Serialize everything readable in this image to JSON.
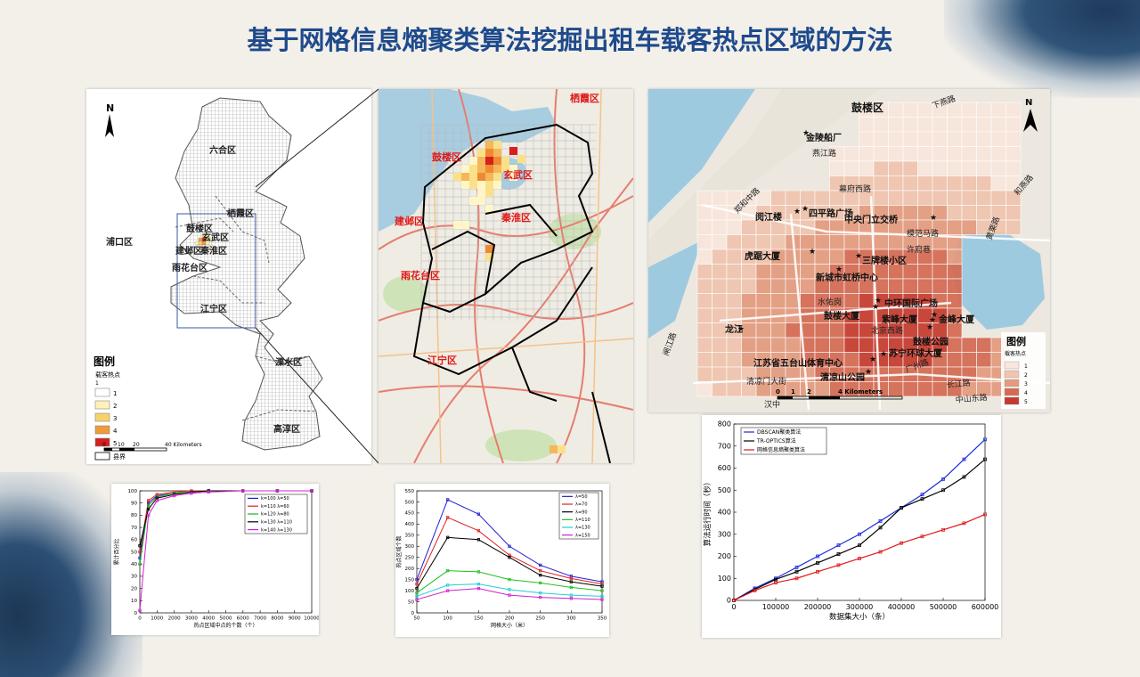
{
  "slide": {
    "title": "基于网格信息熵聚类算法挖掘出租车载客热点区域的方法"
  },
  "map_overview": {
    "north": "N",
    "districts": [
      "六合区",
      "栖霞区",
      "浦口区",
      "鼓楼区",
      "玄武区",
      "建邺区",
      "秦淮区",
      "雨花台区",
      "江宁区",
      "溧水区",
      "高淳区"
    ],
    "legend_title": "图例",
    "legend_subtitle": "载客热点",
    "legend_items": [
      "1",
      "2",
      "3",
      "4",
      "5"
    ],
    "legend_boundary": "县界",
    "scale_ticks": [
      "0",
      "10",
      "20",
      "40 Kilometers"
    ],
    "colors": [
      "#ffffff",
      "#fff3b8",
      "#f6d36a",
      "#f19a3b",
      "#d62020"
    ]
  },
  "map_zoom": {
    "labels": [
      "栖霞区",
      "鼓楼区",
      "玄武区",
      "建邺区",
      "秦淮区",
      "雨花台区",
      "江宁区"
    ]
  },
  "map_detail": {
    "north": "N",
    "districts": [
      "鼓楼区"
    ],
    "places": [
      "金陵船厂",
      "四平路广场",
      "阅江楼",
      "中央门立交桥",
      "虎踞大厦",
      "三牌楼小区",
      "新城市虹桥中心",
      "中环国际广场",
      "鼓楼大厦",
      "紫峰大厦",
      "金峰大厦",
      "龙江",
      "鼓楼公园",
      "江苏省五台山体育中心",
      "苏宁环球大厦",
      "清凉山公园"
    ],
    "roads": [
      "燕江路",
      "幕府西路",
      "郑和中路",
      "许府巷",
      "模范马路",
      "水佑岗",
      "北京西路",
      "闸江路",
      "清凉门大街",
      "广州路",
      "汉中",
      "长江路",
      "中山东路",
      "黄栗路",
      "下燕路",
      "和燕路"
    ],
    "legend_title": "图例",
    "legend_subtitle": "载客热点",
    "legend_items": [
      "1",
      "2",
      "3",
      "4",
      "5"
    ],
    "scale_ticks": [
      "0",
      "1",
      "2",
      "4 Kilometers"
    ],
    "colors": [
      "#f9e6dc",
      "#f0c4ae",
      "#e39a7e",
      "#d46a52",
      "#c43a2e"
    ]
  },
  "chart_runtime": {
    "ylabel": "算法运行时间（秒）",
    "xlabel": "数据集大小（条）"
  },
  "chart_cluster": {
    "xlabel": "热点区域中点的个数（个）",
    "ylabel": "累计百分比"
  },
  "chart_grid": {
    "xlabel": "网格大小（米）",
    "ylabel": "热点区域个数"
  },
  "chart_data": [
    {
      "type": "line",
      "title": "",
      "xlabel": "热点区域中点的个数（个）",
      "ylabel": "累计百分比",
      "xlim": [
        0,
        10000
      ],
      "ylim": [
        0,
        100
      ],
      "x_ticks": [
        "0",
        "1000",
        "2000",
        "3000",
        "4000",
        "5000",
        "6000",
        "7000",
        "8000",
        "9000",
        "10000"
      ],
      "y_ticks": [
        "0",
        "10",
        "20",
        "30",
        "40",
        "50",
        "60",
        "70",
        "80",
        "90",
        "100"
      ],
      "x": [
        0,
        500,
        1000,
        2000,
        3000,
        4000,
        6000,
        8000,
        10000
      ],
      "series": [
        {
          "name": "k=100  λ=50",
          "color": "#2020d0",
          "values": [
            45,
            90,
            96,
            98,
            99,
            100,
            100,
            100,
            100
          ]
        },
        {
          "name": "k=110  λ=60",
          "color": "#e02020",
          "values": [
            50,
            92,
            97,
            99,
            100,
            100,
            100,
            100,
            100
          ]
        },
        {
          "name": "k=120  λ=80",
          "color": "#20b020",
          "values": [
            40,
            88,
            95,
            98,
            99,
            100,
            100,
            100,
            100
          ]
        },
        {
          "name": "k=130  λ=110",
          "color": "#000000",
          "values": [
            55,
            85,
            94,
            97,
            99,
            100,
            100,
            100,
            100
          ]
        },
        {
          "name": "k=140  λ=130",
          "color": "#d020d0",
          "values": [
            2,
            80,
            92,
            96,
            98,
            99,
            100,
            100,
            100
          ]
        }
      ]
    },
    {
      "type": "line",
      "title": "",
      "xlabel": "网格大小（米）",
      "ylabel": "热点区域个数",
      "xlim": [
        50,
        350
      ],
      "ylim": [
        0,
        550
      ],
      "x_ticks": [
        "50",
        "100",
        "150",
        "200",
        "250",
        "300",
        "350"
      ],
      "y_ticks": [
        "0",
        "50",
        "100",
        "150",
        "200",
        "250",
        "300",
        "350",
        "400",
        "450",
        "500",
        "550"
      ],
      "x": [
        50,
        100,
        150,
        200,
        250,
        300,
        350
      ],
      "series": [
        {
          "name": "λ=50",
          "color": "#2020d0",
          "values": [
            150,
            510,
            445,
            300,
            215,
            165,
            140
          ]
        },
        {
          "name": "λ=70",
          "color": "#e02020",
          "values": [
            130,
            430,
            370,
            260,
            190,
            155,
            130
          ]
        },
        {
          "name": "λ=90",
          "color": "#000000",
          "values": [
            110,
            340,
            330,
            250,
            170,
            140,
            120
          ]
        },
        {
          "name": "λ=110",
          "color": "#20c020",
          "values": [
            90,
            190,
            185,
            150,
            135,
            115,
            100
          ]
        },
        {
          "name": "λ=130",
          "color": "#20d0d0",
          "values": [
            75,
            125,
            130,
            105,
            90,
            80,
            75
          ]
        },
        {
          "name": "λ=150",
          "color": "#d020d0",
          "values": [
            60,
            100,
            110,
            80,
            70,
            65,
            60
          ]
        }
      ]
    },
    {
      "type": "line",
      "title": "",
      "xlabel": "数据集大小（条）",
      "ylabel": "算法运行时间（秒）",
      "xlim": [
        0,
        600000
      ],
      "ylim": [
        0,
        800
      ],
      "x_ticks": [
        "0",
        "100000",
        "200000",
        "300000",
        "400000",
        "500000",
        "600000"
      ],
      "y_ticks": [
        "0",
        "100",
        "200",
        "300",
        "400",
        "500",
        "600",
        "700",
        "800"
      ],
      "x": [
        0,
        50000,
        100000,
        150000,
        200000,
        250000,
        300000,
        350000,
        400000,
        450000,
        500000,
        550000,
        600000
      ],
      "series": [
        {
          "name": "DBSCAN聚类算法",
          "color": "#1a2ad8",
          "values": [
            0,
            55,
            100,
            150,
            200,
            250,
            300,
            360,
            420,
            480,
            550,
            640,
            730
          ]
        },
        {
          "name": "TR-OPTICS算法",
          "color": "#000000",
          "values": [
            0,
            50,
            95,
            130,
            170,
            210,
            250,
            330,
            420,
            460,
            500,
            560,
            640
          ]
        },
        {
          "name": "网格信息熵聚类算法",
          "color": "#e01818",
          "values": [
            0,
            45,
            80,
            100,
            130,
            160,
            190,
            220,
            260,
            290,
            320,
            350,
            390
          ]
        }
      ]
    }
  ]
}
